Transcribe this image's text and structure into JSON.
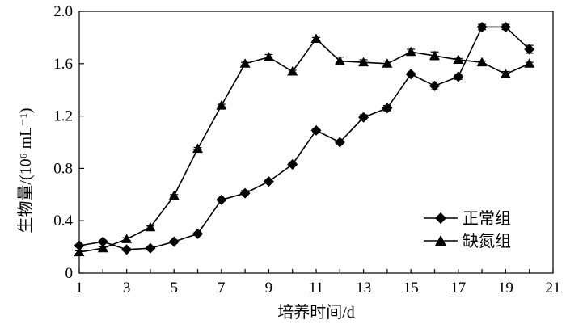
{
  "chart_data": {
    "type": "line",
    "xlabel": "培养时间/d",
    "ylabel": "生物量/(10⁶ mL⁻¹)",
    "xlim": [
      1,
      21
    ],
    "ylim": [
      0,
      2.0
    ],
    "x_ticks": [
      "1",
      "3",
      "5",
      "7",
      "9",
      "11",
      "13",
      "15",
      "17",
      "19",
      "21"
    ],
    "y_ticks": [
      "0",
      "0.4",
      "0.8",
      "1.2",
      "1.6",
      "2.0"
    ],
    "grid": false,
    "legend_position": "bottom-right",
    "series": [
      {
        "name": "正常组",
        "marker": "diamond",
        "x": [
          1,
          2,
          3,
          4,
          5,
          6,
          7,
          8,
          9,
          10,
          11,
          12,
          13,
          14,
          15,
          16,
          17,
          18,
          19,
          20
        ],
        "y": [
          0.21,
          0.24,
          0.18,
          0.19,
          0.24,
          0.3,
          0.56,
          0.61,
          0.7,
          0.83,
          1.09,
          1.0,
          1.19,
          1.26,
          1.52,
          1.43,
          1.5,
          1.88,
          1.88,
          1.71
        ],
        "err": [
          0.01,
          0.01,
          0.01,
          0.01,
          0.01,
          0.01,
          0.01,
          0.02,
          0.01,
          0.01,
          0.01,
          0.01,
          0.02,
          0.02,
          0.01,
          0.03,
          0.02,
          0.02,
          0.02,
          0.03
        ]
      },
      {
        "name": "缺氮组",
        "marker": "triangle",
        "x": [
          1,
          2,
          3,
          4,
          5,
          6,
          7,
          8,
          9,
          10,
          11,
          12,
          13,
          14,
          15,
          16,
          17,
          18,
          19,
          20
        ],
        "y": [
          0.16,
          0.19,
          0.26,
          0.35,
          0.59,
          0.95,
          1.28,
          1.6,
          1.65,
          1.54,
          1.79,
          1.62,
          1.61,
          1.6,
          1.69,
          1.66,
          1.63,
          1.61,
          1.52,
          1.6
        ],
        "err": [
          0.01,
          0.01,
          0.01,
          0.01,
          0.01,
          0.01,
          0.01,
          0.01,
          0.02,
          0.01,
          0.01,
          0.03,
          0.02,
          0.02,
          0.02,
          0.03,
          0.01,
          0.01,
          0.02,
          0.01
        ]
      }
    ]
  }
}
